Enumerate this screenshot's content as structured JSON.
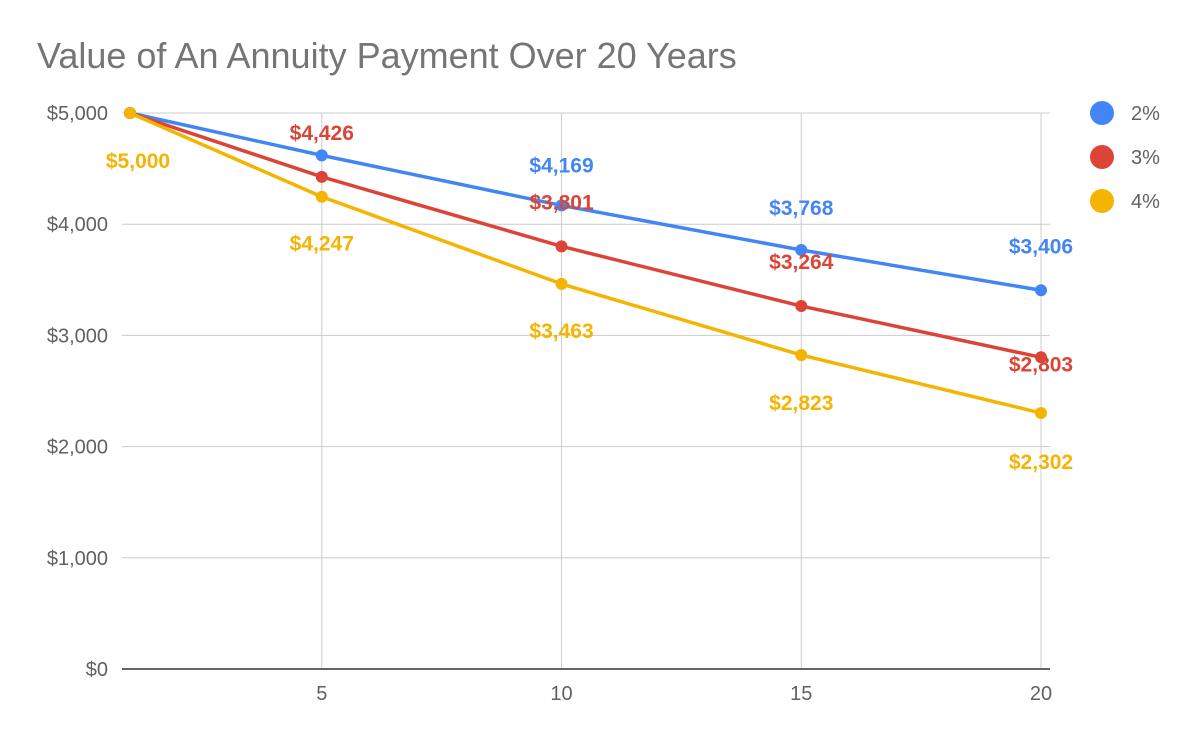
{
  "chart_data": {
    "type": "line",
    "title": "Value of An Annuity Payment Over 20 Years",
    "xlabel": "",
    "ylabel": "",
    "x": [
      1,
      5,
      10,
      15,
      20
    ],
    "xlim": [
      1,
      20
    ],
    "ylim": [
      0,
      5000
    ],
    "x_ticks": [
      5,
      10,
      15,
      20
    ],
    "x_tick_labels": [
      "5",
      "10",
      "15",
      "20"
    ],
    "y_ticks": [
      0,
      1000,
      2000,
      3000,
      4000,
      5000
    ],
    "y_tick_labels": [
      "$0",
      "$1,000",
      "$2,000",
      "$3,000",
      "$4,000",
      "$5,000"
    ],
    "grid": true,
    "legend_position": "right",
    "series": [
      {
        "name": "2%",
        "color": "#4285F4",
        "values": [
          5000,
          4619,
          4169,
          3768,
          3406
        ],
        "data_labels": [
          "",
          "",
          "$4,169",
          "$3,768",
          "$3,406"
        ]
      },
      {
        "name": "3%",
        "color": "#DB4437",
        "values": [
          5000,
          4426,
          3801,
          3264,
          2803
        ],
        "data_labels": [
          "",
          "$4,426",
          "$3,801",
          "$3,264",
          "$2,803"
        ]
      },
      {
        "name": "4%",
        "color": "#F4B400",
        "values": [
          5000,
          4247,
          3463,
          2823,
          2302
        ],
        "data_labels": [
          "$5,000",
          "$4,247",
          "$3,463",
          "$2,823",
          "$2,302"
        ]
      }
    ]
  }
}
